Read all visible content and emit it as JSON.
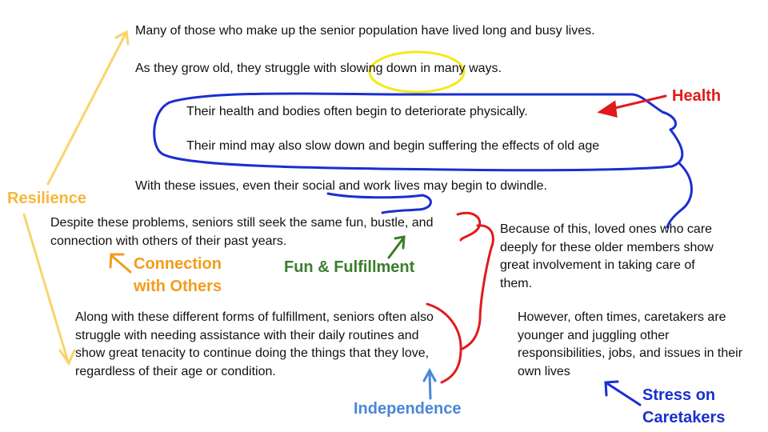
{
  "sentences": {
    "s1": "Many of those who make up the senior population have lived long and busy lives.",
    "s2": "As they grow old, they struggle with slowing down in many ways.",
    "s3": "Their health and bodies often begin to deteriorate physically.",
    "s4": "Their mind may also slow down and begin suffering the effects of old age",
    "s5": "With these issues, even their social and work lives may begin to dwindle.",
    "s6": "Despite these problems, seniors still seek the same fun, bustle, and connection with others of their past years.",
    "s7": "Because of this, loved ones who care deeply for these older members show great involvement in taking care of them.",
    "s8": "Along with these different forms of fulfillment, seniors often also struggle with needing assistance with their daily routines and show great tenacity to continue doing the things that they love, regardless of their age or condition.",
    "s9": "However, often times, caretakers are younger and juggling other responsibilities, jobs, and issues in their own lives"
  },
  "labels": {
    "resilience": "Resilience",
    "health": "Health",
    "connection": "Connection with Others",
    "fun": "Fun & Fulfillment",
    "independence": "Independence",
    "stress": "Stress on Caretakers"
  },
  "colors": {
    "resilience": "#f6b73c",
    "resilience_arrow": "#f7d56b",
    "health": "#e01b1b",
    "connection": "#f39c1b",
    "fun": "#3a7d2c",
    "independence": "#4a86d8",
    "stress": "#1a2fd0",
    "highlight": "#f5e91a"
  }
}
